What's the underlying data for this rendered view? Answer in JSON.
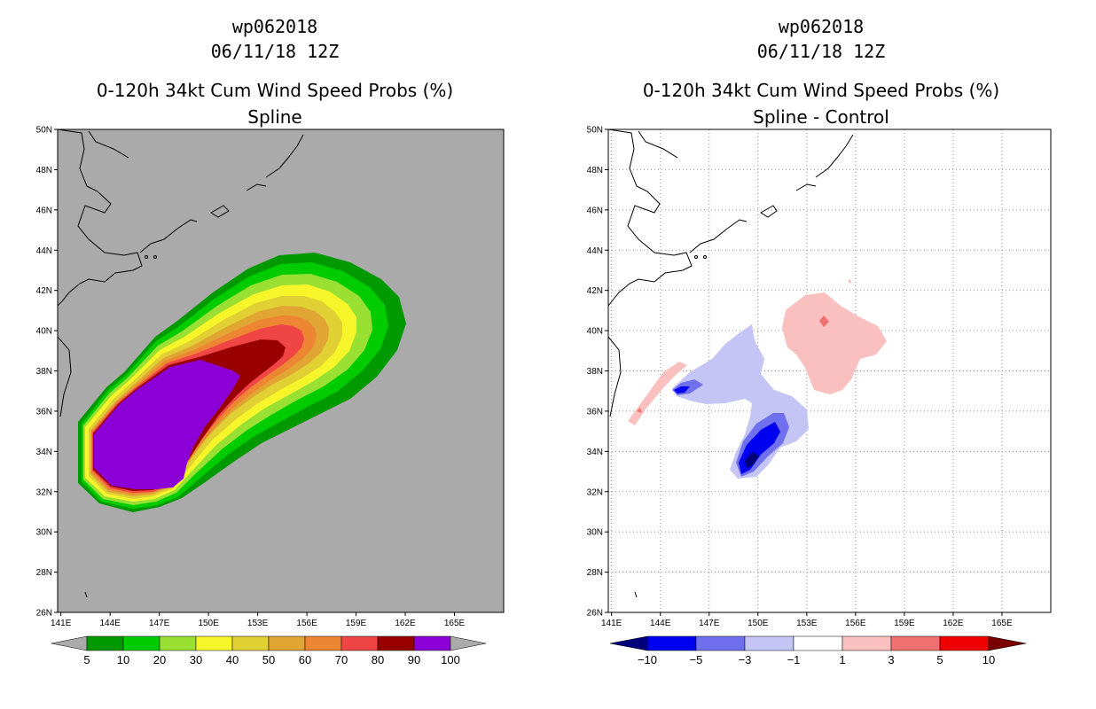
{
  "chart_data": [
    {
      "type": "heatmap",
      "storm_id": "wp062018",
      "datetime": "06/11/18 12Z",
      "title": "0-120h 34kt Cum Wind Speed Probs (%)",
      "subtitle": "Spline",
      "x_ticks": [
        "141E",
        "144E",
        "147E",
        "150E",
        "153E",
        "156E",
        "159E",
        "162E",
        "165E"
      ],
      "y_ticks": [
        "26N",
        "28N",
        "30N",
        "32N",
        "34N",
        "36N",
        "38N",
        "40N",
        "42N",
        "44N",
        "46N",
        "48N",
        "50N"
      ],
      "xlim": [
        140.8,
        168.0
      ],
      "ylim": [
        26,
        50
      ],
      "colorbar": {
        "labels": [
          "5",
          "10",
          "20",
          "30",
          "40",
          "50",
          "60",
          "70",
          "80",
          "90",
          "100"
        ],
        "colors": [
          "#009900",
          "#00cc00",
          "#99e033",
          "#f5f52a",
          "#e0d033",
          "#e0a533",
          "#ee8533",
          "#f04545",
          "#990000",
          "#8a00d6"
        ]
      },
      "background": "#aaaaaa"
    },
    {
      "type": "heatmap",
      "storm_id": "wp062018",
      "datetime": "06/11/18 12Z",
      "title": "0-120h 34kt Cum Wind Speed Probs (%)",
      "subtitle": "Spline - Control",
      "x_ticks": [
        "141E",
        "144E",
        "147E",
        "150E",
        "153E",
        "156E",
        "159E",
        "162E",
        "165E"
      ],
      "y_ticks": [
        "26N",
        "28N",
        "30N",
        "32N",
        "34N",
        "36N",
        "38N",
        "40N",
        "42N",
        "44N",
        "46N",
        "48N",
        "50N"
      ],
      "xlim": [
        140.8,
        168.0
      ],
      "ylim": [
        26,
        50
      ],
      "colorbar": {
        "labels": [
          "-10",
          "-5",
          "-3",
          "-1",
          "1",
          "3",
          "5",
          "10"
        ],
        "colors": [
          "#00007a",
          "#0000f0",
          "#7070ee",
          "#c5c5f5",
          "#ffffff",
          "#fac0c0",
          "#f07070",
          "#f00000",
          "#7a0000"
        ]
      },
      "background": "#ffffff"
    }
  ]
}
